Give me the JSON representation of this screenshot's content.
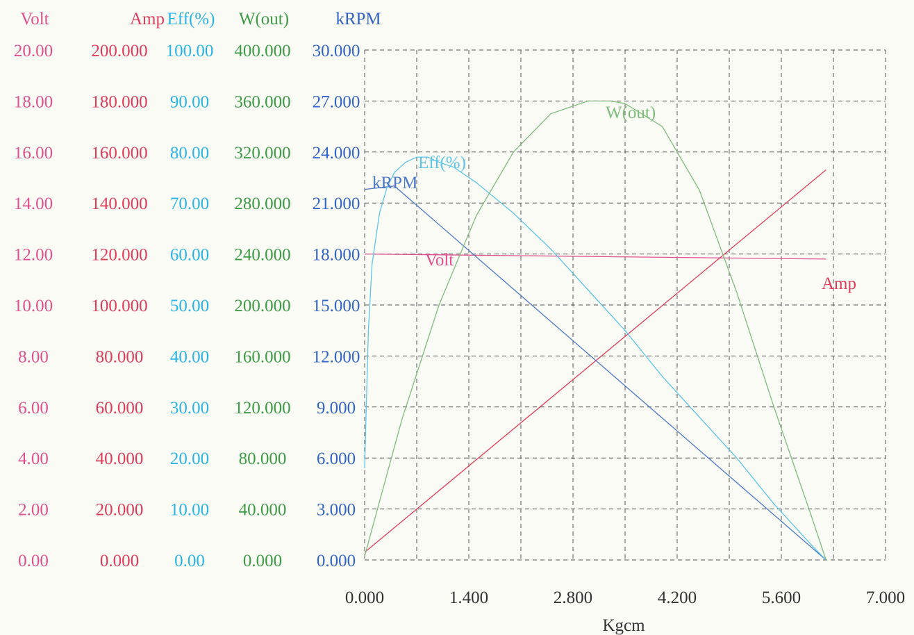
{
  "chart_data": {
    "type": "line",
    "title": "",
    "xlabel": "Kgcm",
    "x_ticks": [
      "0.000",
      "1.400",
      "2.800",
      "4.200",
      "5.600",
      "7.000"
    ],
    "xlim": [
      0,
      7
    ],
    "grid": true,
    "axes": [
      {
        "key": "volt",
        "label": "Volt",
        "color": "#e0508c",
        "ticks": [
          "20.00",
          "18.00",
          "16.00",
          "14.00",
          "12.00",
          "10.00",
          "8.00",
          "6.00",
          "4.00",
          "2.00",
          "0.00"
        ],
        "range": [
          0,
          20
        ]
      },
      {
        "key": "amp",
        "label": "Amp",
        "color": "#e03c5a",
        "ticks": [
          "200.000",
          "180.000",
          "160.000",
          "140.000",
          "120.000",
          "100.000",
          "80.000",
          "60.000",
          "40.000",
          "20.000",
          "0.000"
        ],
        "range": [
          0,
          200
        ]
      },
      {
        "key": "eff",
        "label": "Eff(%)",
        "color": "#28b4e6",
        "ticks": [
          "100.00",
          "90.00",
          "80.00",
          "70.00",
          "60.00",
          "50.00",
          "40.00",
          "30.00",
          "20.00",
          "10.00",
          "0.00"
        ],
        "range": [
          0,
          100
        ]
      },
      {
        "key": "wout",
        "label": "W(out)",
        "color": "#3c9c46",
        "ticks": [
          "400.000",
          "360.000",
          "320.000",
          "280.000",
          "240.000",
          "200.000",
          "160.000",
          "120.000",
          "80.000",
          "40.000",
          "0.000"
        ],
        "range": [
          0,
          400
        ]
      },
      {
        "key": "krpm",
        "label": "kRPM",
        "color": "#3264c8",
        "ticks": [
          "30.000",
          "27.000",
          "24.000",
          "21.000",
          "18.000",
          "15.000",
          "12.000",
          "9.000",
          "6.000",
          "3.000",
          "0.000"
        ],
        "range": [
          0,
          30
        ]
      }
    ],
    "series": [
      {
        "name": "Volt",
        "axis": "volt",
        "color": "#e0508c",
        "x": [
          0,
          6.2
        ],
        "y": [
          12.0,
          11.8
        ]
      },
      {
        "name": "Amp",
        "axis": "amp",
        "color": "#e03c5a",
        "x": [
          0,
          6.2
        ],
        "y": [
          3,
          153
        ]
      },
      {
        "name": "kRPM",
        "axis": "krpm",
        "color": "#4a78c8",
        "x": [
          0,
          0.4,
          6.2
        ],
        "y": [
          21.8,
          22.0,
          0
        ]
      },
      {
        "name": "Eff(%)",
        "axis": "eff",
        "color": "#5cc4ea",
        "x": [
          0,
          0.05,
          0.1,
          0.2,
          0.3,
          0.4,
          0.55,
          0.7,
          0.85,
          1.0,
          1.2,
          1.5,
          2.0,
          2.5,
          3.0,
          3.5,
          4.0,
          4.5,
          5.0,
          5.5,
          6.0,
          6.2
        ],
        "y": [
          18,
          45,
          58,
          68,
          73,
          76,
          78,
          79,
          79,
          78,
          77,
          74,
          68,
          61,
          53,
          45,
          36,
          28,
          20,
          11,
          3,
          0
        ]
      },
      {
        "name": "W(out)",
        "axis": "wout",
        "color": "#7cbc78",
        "x": [
          0,
          0.5,
          1.0,
          1.5,
          2.0,
          2.5,
          3.0,
          3.3,
          3.5,
          4.0,
          4.5,
          5.0,
          5.5,
          6.0,
          6.2
        ],
        "y": [
          3,
          110,
          200,
          270,
          320,
          350,
          360,
          360,
          358,
          340,
          290,
          210,
          120,
          35,
          0
        ]
      }
    ],
    "curve_labels": [
      {
        "series": "W(out)",
        "text": "W(out)"
      },
      {
        "series": "Eff(%)",
        "text": "Eff(%)"
      },
      {
        "series": "kRPM",
        "text": "kRPM"
      },
      {
        "series": "Volt",
        "text": "Volt"
      },
      {
        "series": "Amp",
        "text": "Amp"
      }
    ]
  }
}
